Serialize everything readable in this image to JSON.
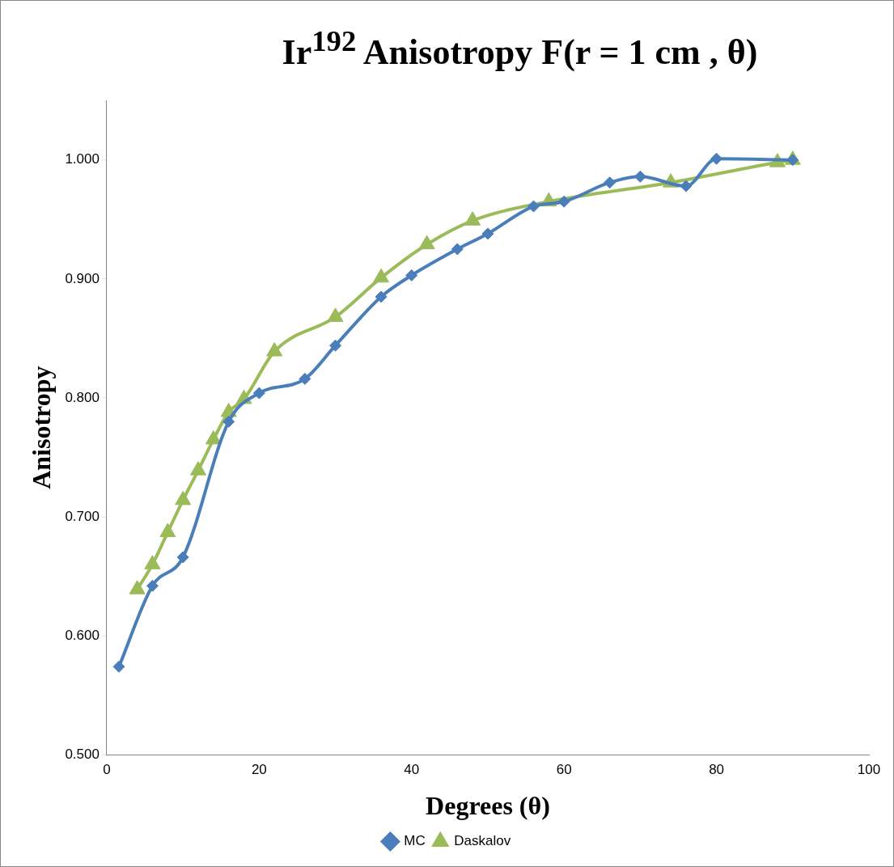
{
  "chart_data": {
    "type": "line",
    "title": "Ir$^{192}$ Anisotropy  F(r = 1 cm , θ)",
    "xlabel": "Degrees (θ)",
    "ylabel": "Anisotropy",
    "xlim": [
      0,
      100
    ],
    "xticks": [
      0,
      20,
      40,
      60,
      80,
      100
    ],
    "ylim": [
      0.5,
      1.05
    ],
    "yticks": [
      {
        "value": 0.5,
        "label": "0.500"
      },
      {
        "value": 0.6,
        "label": "0.600"
      },
      {
        "value": 0.7,
        "label": "0.700"
      },
      {
        "value": 0.8,
        "label": "0.800"
      },
      {
        "value": 0.9,
        "label": "0.900"
      },
      {
        "value": 1.0,
        "label": "1.000"
      }
    ],
    "grid": false,
    "legend": "bottom",
    "line_style": "solid",
    "series": [
      {
        "name": "MC",
        "color": "#4a7ebb",
        "marker": "diamond",
        "x": [
          1.6,
          6,
          10,
          16,
          20,
          26,
          30,
          36,
          40,
          46,
          50,
          56,
          60,
          66,
          70,
          76,
          80,
          90
        ],
        "values": [
          0.574,
          0.642,
          0.666,
          0.78,
          0.804,
          0.816,
          0.844,
          0.885,
          0.903,
          0.925,
          0.938,
          0.961,
          0.965,
          0.981,
          0.986,
          0.978,
          1.001,
          1.0
        ]
      },
      {
        "name": "Daskalov",
        "color": "#9bbb59",
        "marker": "triangle",
        "x": [
          4,
          6,
          8,
          10,
          12,
          14,
          16,
          18,
          22,
          30,
          36,
          42,
          48,
          58,
          74,
          88,
          90
        ],
        "values": [
          0.639,
          0.66,
          0.687,
          0.714,
          0.739,
          0.765,
          0.788,
          0.799,
          0.839,
          0.868,
          0.901,
          0.929,
          0.949,
          0.965,
          0.981,
          0.998,
          1.0
        ]
      }
    ]
  }
}
